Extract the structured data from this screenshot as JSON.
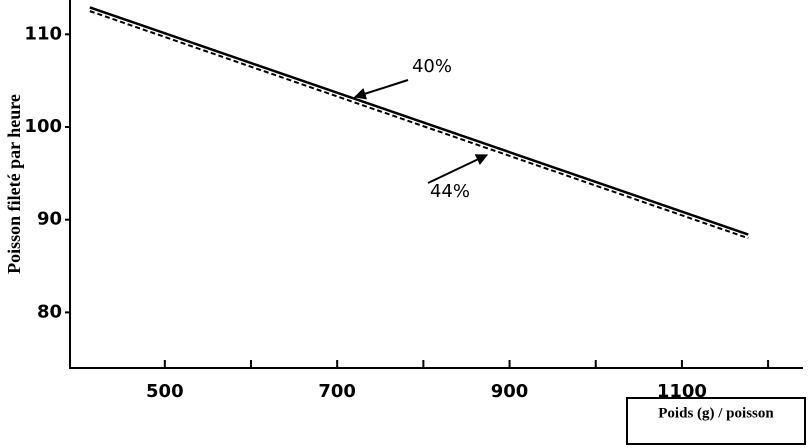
{
  "chart_data": {
    "type": "line",
    "y_label": "Poisson fileté par heure",
    "x_label": "Poids (g) / poisson",
    "xlim": [
      390,
      1237
    ],
    "ylim": [
      74,
      113.7
    ],
    "xticks": [
      500,
      700,
      900,
      1100
    ],
    "xminor_ticks": [
      600,
      800,
      1000,
      1200
    ],
    "yticks": [
      80,
      90,
      100,
      110
    ],
    "x": [
      413,
      1177
    ],
    "series": [
      {
        "name": "40%",
        "color": "#000000",
        "dash": false,
        "values": [
          112.9,
          88.4
        ]
      },
      {
        "name": "44%",
        "color": "#000000",
        "dash": true,
        "values": [
          112.5,
          88.0
        ]
      }
    ]
  }
}
